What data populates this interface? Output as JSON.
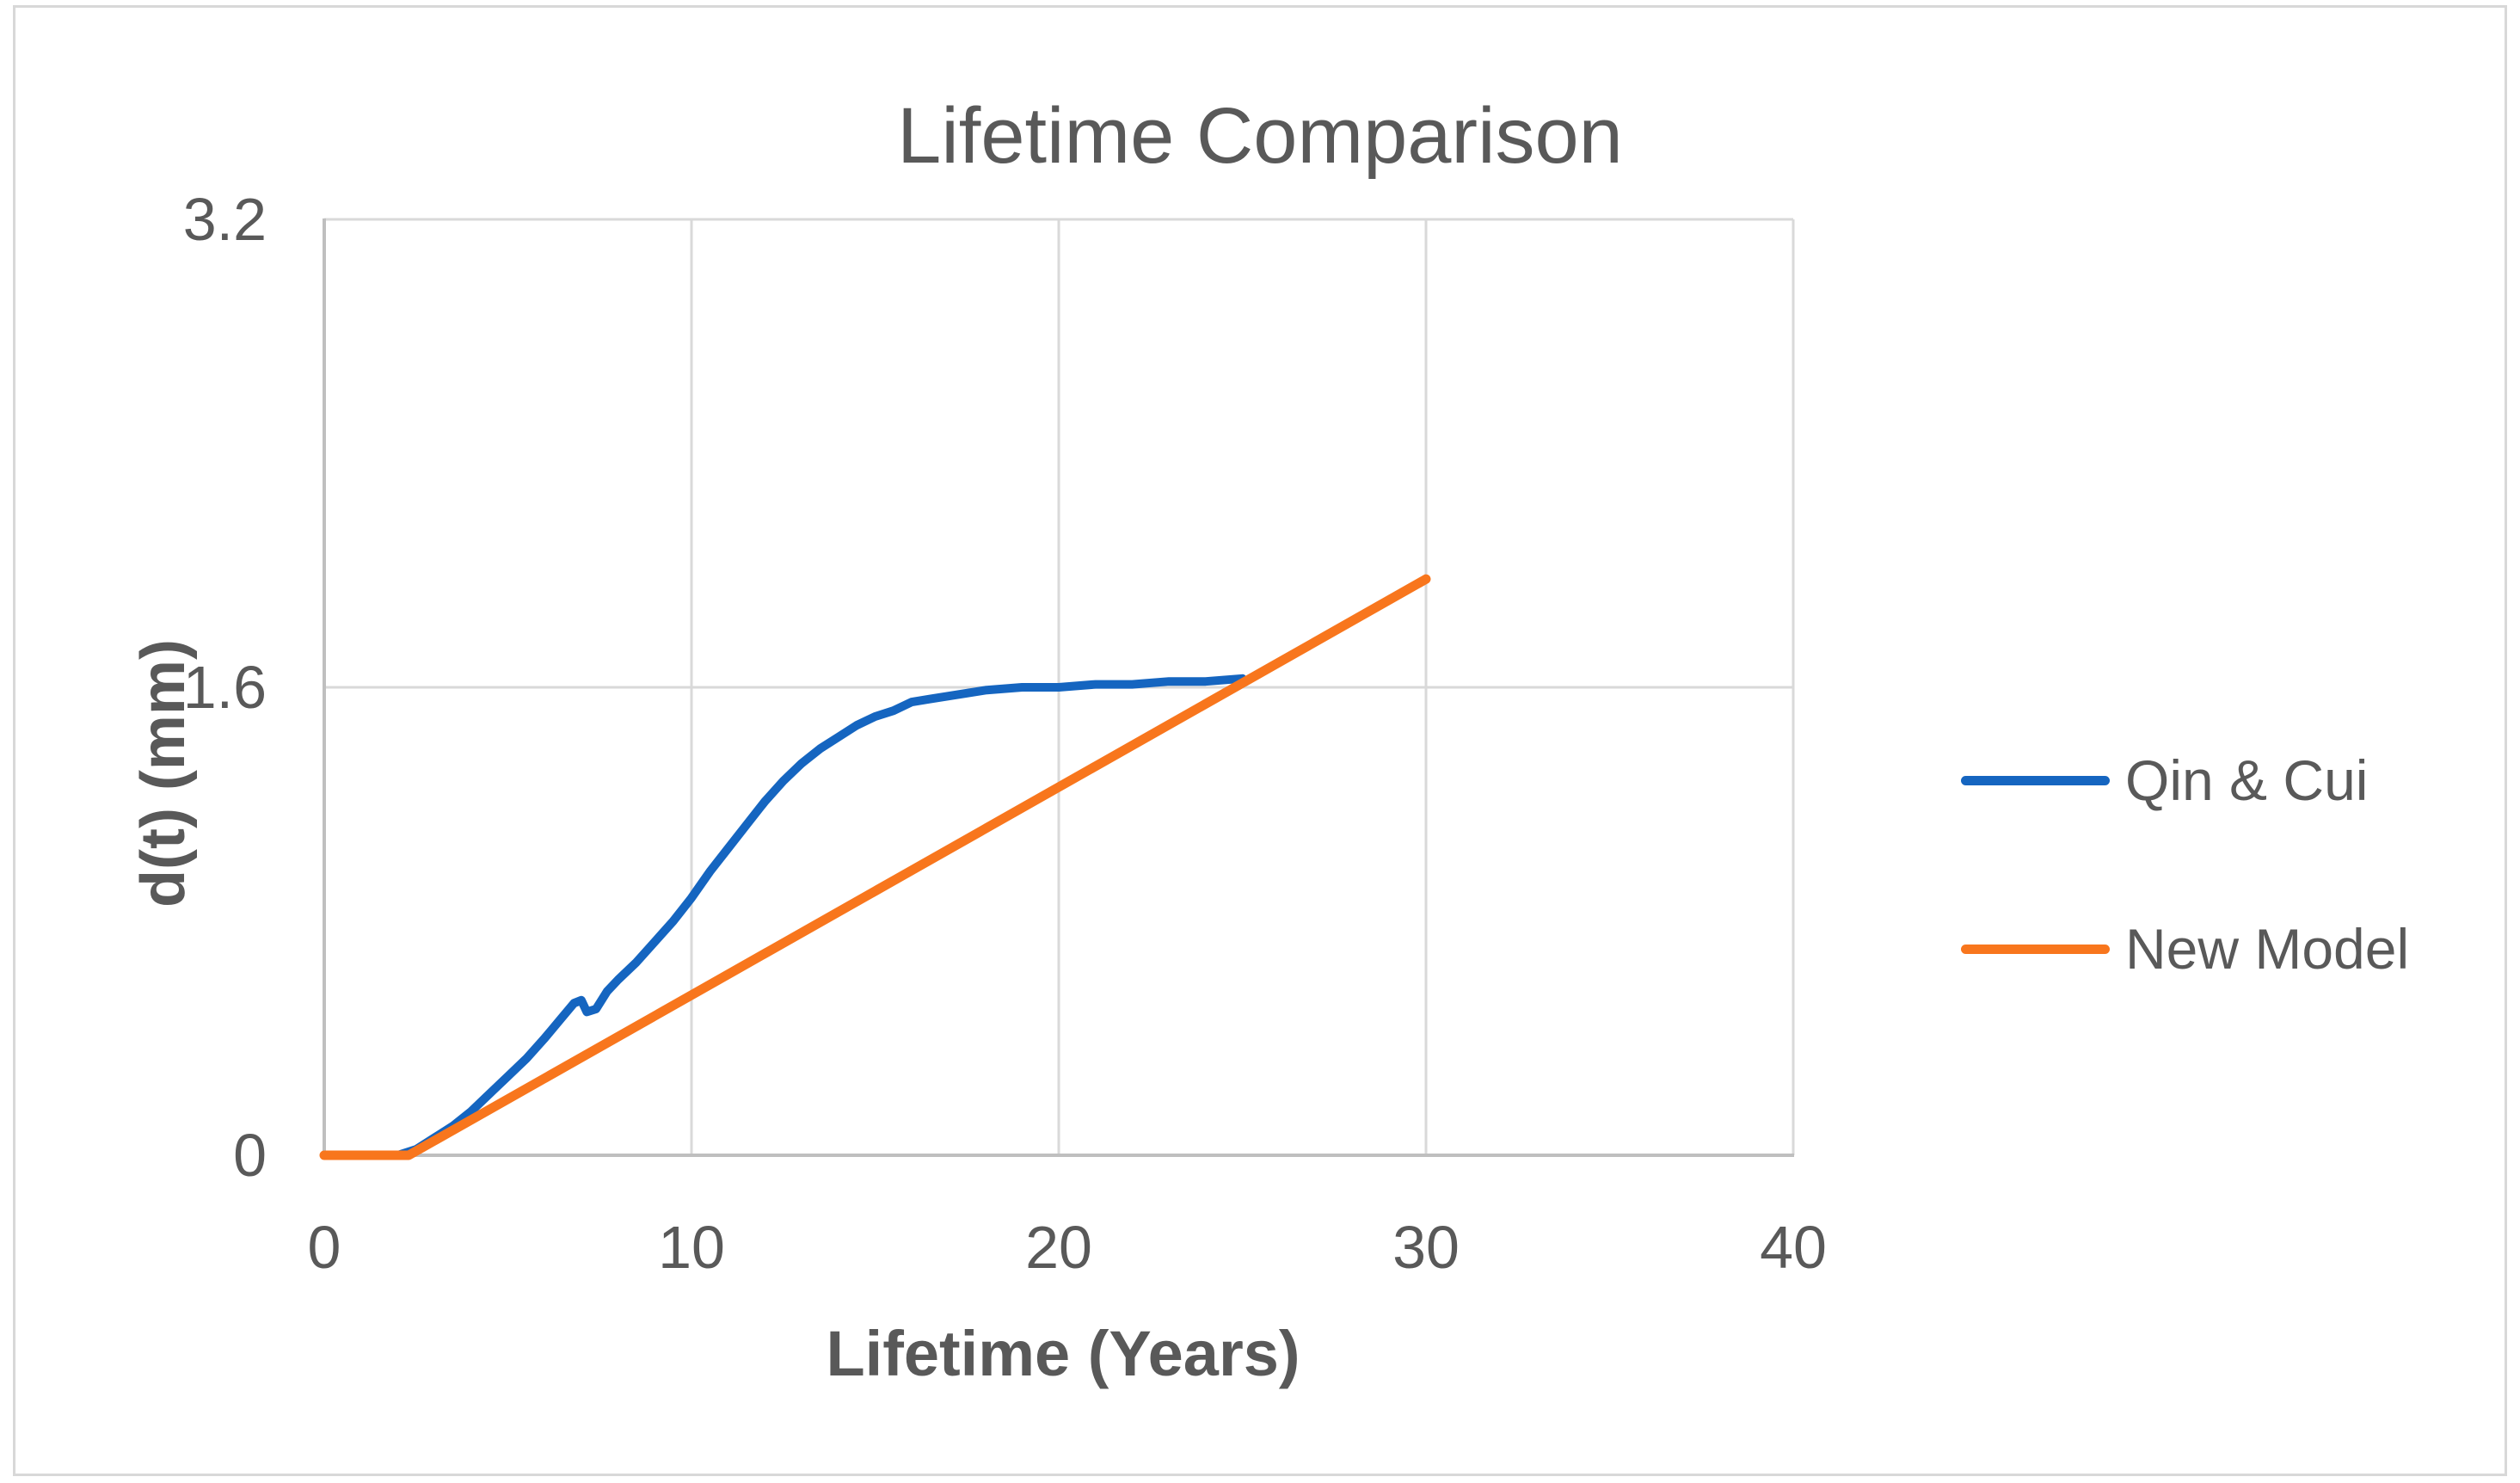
{
  "figure": {
    "background": "#ffffff",
    "border_color": "#d8d8d8"
  },
  "chart_data": {
    "type": "line",
    "title": "Lifetime Comparison",
    "xlabel": "Lifetime (Years)",
    "ylabel": "d(t) (mm)",
    "xlim": [
      0,
      40
    ],
    "ylim": [
      0,
      3.2
    ],
    "x_ticks": [
      0,
      10,
      20,
      30,
      40
    ],
    "x_tick_labels": [
      "0",
      "10",
      "20",
      "30",
      "40"
    ],
    "y_ticks": [
      0,
      1.6,
      3.2
    ],
    "y_tick_labels": [
      "0",
      "1.6",
      "3.2"
    ],
    "grid": true,
    "legend_position": "right",
    "colors": {
      "gridline": "#d9d9d9",
      "axis_line": "#bfbfbf",
      "text": "#595959"
    },
    "series": [
      {
        "name": "Qin & Cui",
        "color": "#1565c0",
        "stroke_width": 10,
        "points": [
          [
            2,
            0
          ],
          [
            2.5,
            0.02
          ],
          [
            3,
            0.06
          ],
          [
            3.5,
            0.1
          ],
          [
            4,
            0.15
          ],
          [
            4.5,
            0.21
          ],
          [
            5,
            0.27
          ],
          [
            5.5,
            0.33
          ],
          [
            6,
            0.4
          ],
          [
            6.4,
            0.46
          ],
          [
            6.8,
            0.52
          ],
          [
            7,
            0.53
          ],
          [
            7.15,
            0.49
          ],
          [
            7.4,
            0.5
          ],
          [
            7.7,
            0.56
          ],
          [
            8,
            0.6
          ],
          [
            8.5,
            0.66
          ],
          [
            9,
            0.73
          ],
          [
            9.5,
            0.8
          ],
          [
            10,
            0.88
          ],
          [
            10.5,
            0.97
          ],
          [
            11,
            1.05
          ],
          [
            11.5,
            1.13
          ],
          [
            12,
            1.21
          ],
          [
            12.5,
            1.28
          ],
          [
            13,
            1.34
          ],
          [
            13.5,
            1.39
          ],
          [
            14,
            1.43
          ],
          [
            14.5,
            1.47
          ],
          [
            15,
            1.5
          ],
          [
            15.5,
            1.52
          ],
          [
            16,
            1.55
          ],
          [
            16.5,
            1.56
          ],
          [
            17,
            1.57
          ],
          [
            17.5,
            1.58
          ],
          [
            18,
            1.59
          ],
          [
            19,
            1.6
          ],
          [
            20,
            1.6
          ],
          [
            21,
            1.61
          ],
          [
            22,
            1.61
          ],
          [
            23,
            1.62
          ],
          [
            24,
            1.62
          ],
          [
            25,
            1.63
          ]
        ]
      },
      {
        "name": "New Model",
        "color": "#f8761d",
        "stroke_width": 11,
        "points": [
          [
            0,
            0
          ],
          [
            2.3,
            0
          ],
          [
            30,
            1.97
          ]
        ]
      }
    ]
  }
}
